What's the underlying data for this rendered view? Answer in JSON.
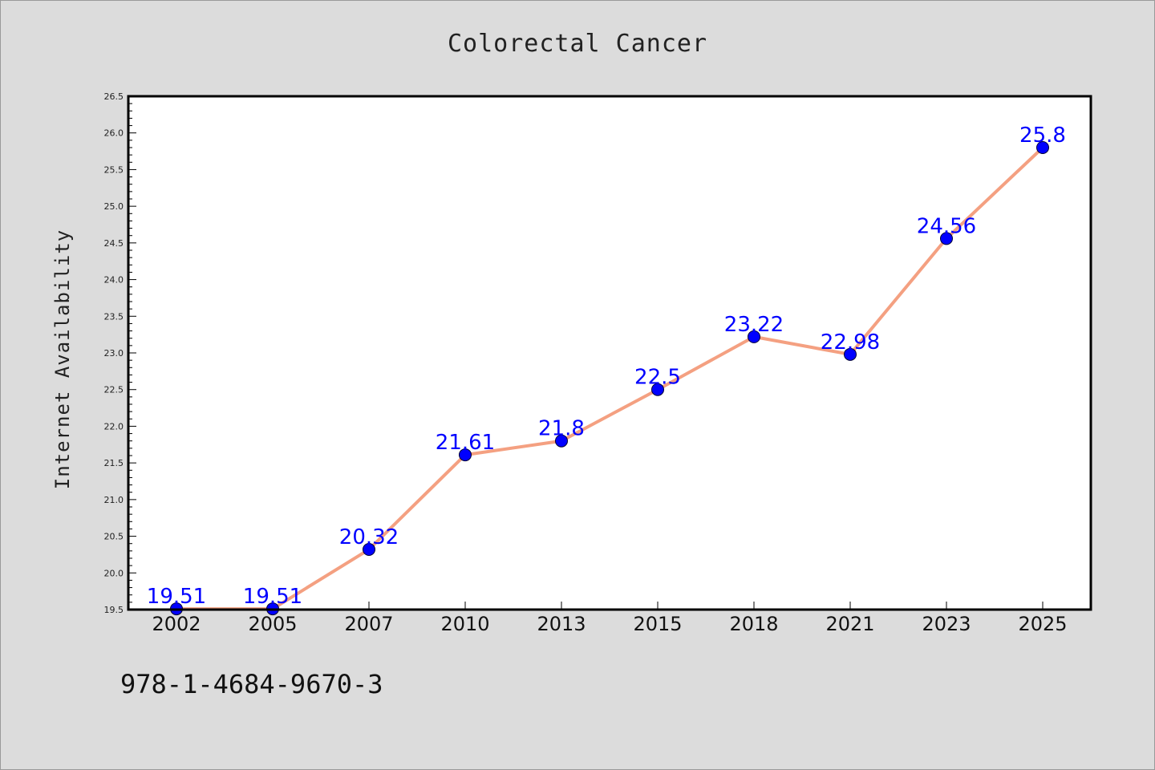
{
  "chart_data": {
    "type": "line",
    "title": "Colorectal Cancer",
    "xlabel": "",
    "ylabel": "Internet Availability",
    "categories": [
      "2002",
      "2005",
      "2007",
      "2010",
      "2013",
      "2015",
      "2018",
      "2021",
      "2023",
      "2025"
    ],
    "values": [
      19.51,
      19.51,
      20.32,
      21.61,
      21.8,
      22.5,
      23.22,
      22.98,
      24.56,
      25.8
    ],
    "data_labels": [
      "19.51",
      "19.51",
      "20.32",
      "21.61",
      "21.8",
      "22.5",
      "23.22",
      "22.98",
      "24.56",
      "25.8"
    ],
    "ylim": [
      19.5,
      26.5
    ],
    "yticks": [
      19.5,
      20.0,
      20.5,
      21.0,
      21.5,
      22.0,
      22.5,
      23.0,
      23.5,
      24.0,
      24.5,
      25.0,
      25.5,
      26.0,
      26.5
    ],
    "ytick_labels": [
      "19.5",
      "20.0",
      "20.5",
      "21.0",
      "21.5",
      "22.0",
      "22.5",
      "23.0",
      "23.5",
      "24.0",
      "24.5",
      "25.0",
      "25.5",
      "26.0",
      "26.5"
    ],
    "grid": false,
    "legend": "none",
    "colors": {
      "line": "#f4a081",
      "marker": "#0000ff",
      "label": "#0000ff",
      "plot_bg": "#ffffff",
      "page_bg": "#dcdcdc"
    }
  },
  "footer": {
    "isbn": "978-1-4684-9670-3"
  }
}
